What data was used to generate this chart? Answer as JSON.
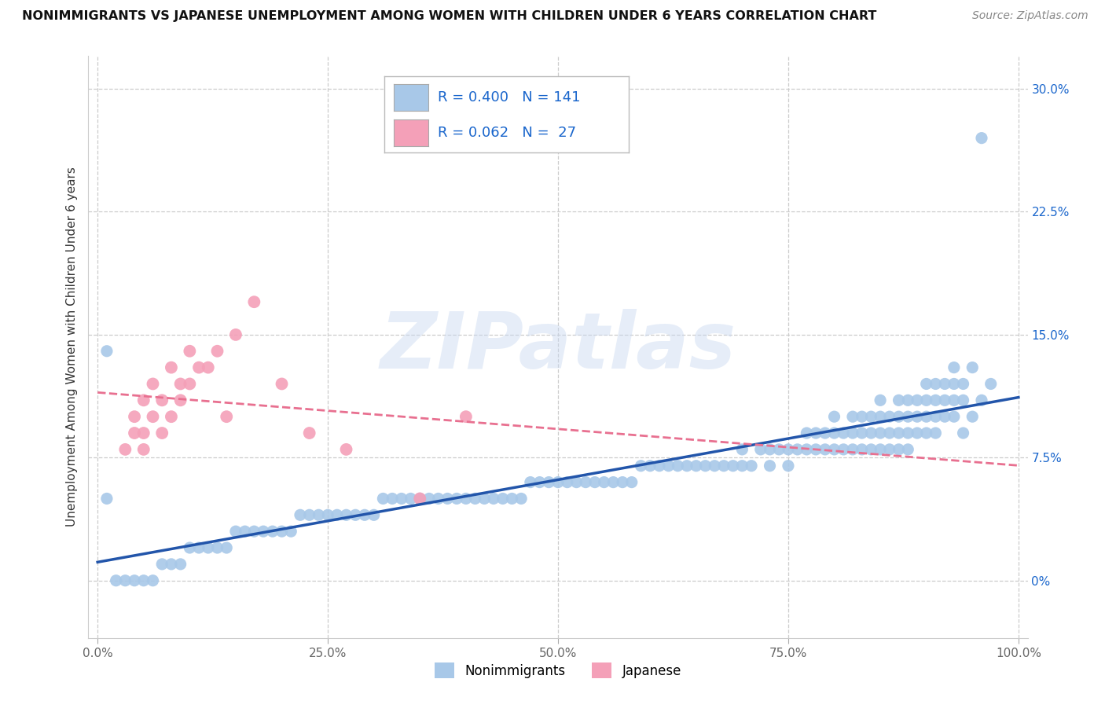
{
  "title": "NONIMMIGRANTS VS JAPANESE UNEMPLOYMENT AMONG WOMEN WITH CHILDREN UNDER 6 YEARS CORRELATION CHART",
  "source": "Source: ZipAtlas.com",
  "ylabel": "Unemployment Among Women with Children Under 6 years",
  "xlim": [
    -1,
    101
  ],
  "ylim": [
    -3.5,
    32
  ],
  "ytick_vals": [
    0,
    7.5,
    15.0,
    22.5,
    30.0
  ],
  "ytick_labels": [
    "0%",
    "7.5%",
    "15.0%",
    "22.5%",
    "30.0%"
  ],
  "xtick_vals": [
    0,
    25,
    50,
    75,
    100
  ],
  "xtick_labels": [
    "0.0%",
    "25.0%",
    "50.0%",
    "75.0%",
    "100.0%"
  ],
  "nonimm_color": "#a8c8e8",
  "japanese_color": "#f4a0b8",
  "nonimm_line_color": "#2255aa",
  "japanese_line_color": "#e87090",
  "legend_color": "#1a66cc",
  "nonimm_R": 0.4,
  "nonimm_N": 141,
  "japanese_R": 0.062,
  "japanese_N": 27,
  "background_color": "#ffffff",
  "grid_color": "#cccccc",
  "nonimm_x": [
    97,
    96,
    95,
    95,
    94,
    94,
    94,
    93,
    93,
    93,
    93,
    92,
    92,
    92,
    91,
    91,
    91,
    91,
    90,
    90,
    90,
    90,
    89,
    89,
    89,
    88,
    88,
    88,
    88,
    87,
    87,
    87,
    87,
    86,
    86,
    86,
    85,
    85,
    85,
    85,
    84,
    84,
    84,
    83,
    83,
    83,
    82,
    82,
    82,
    81,
    81,
    80,
    80,
    80,
    79,
    79,
    78,
    78,
    77,
    77,
    76,
    75,
    75,
    74,
    73,
    73,
    72,
    71,
    70,
    70,
    69,
    68,
    67,
    66,
    65,
    64,
    63,
    62,
    61,
    60,
    59,
    58,
    57,
    56,
    55,
    54,
    53,
    52,
    51,
    50,
    49,
    48,
    47,
    46,
    45,
    44,
    43,
    42,
    41,
    40,
    39,
    38,
    37,
    36,
    35,
    34,
    33,
    32,
    31,
    30,
    29,
    28,
    27,
    26,
    25,
    24,
    23,
    22,
    21,
    20,
    19,
    18,
    17,
    16,
    15,
    14,
    13,
    12,
    11,
    10,
    9,
    8,
    7,
    6,
    5,
    4,
    3,
    2,
    1,
    1,
    96
  ],
  "nonimm_y": [
    12,
    11,
    10,
    13,
    9,
    11,
    12,
    10,
    11,
    12,
    13,
    10,
    11,
    12,
    9,
    10,
    11,
    12,
    9,
    10,
    11,
    12,
    9,
    10,
    11,
    8,
    9,
    10,
    11,
    8,
    9,
    10,
    11,
    8,
    9,
    10,
    8,
    9,
    10,
    11,
    8,
    9,
    10,
    8,
    9,
    10,
    8,
    9,
    10,
    8,
    9,
    8,
    9,
    10,
    8,
    9,
    8,
    9,
    8,
    9,
    8,
    7,
    8,
    8,
    7,
    8,
    8,
    7,
    7,
    8,
    7,
    7,
    7,
    7,
    7,
    7,
    7,
    7,
    7,
    7,
    7,
    6,
    6,
    6,
    6,
    6,
    6,
    6,
    6,
    6,
    6,
    6,
    6,
    5,
    5,
    5,
    5,
    5,
    5,
    5,
    5,
    5,
    5,
    5,
    5,
    5,
    5,
    5,
    5,
    4,
    4,
    4,
    4,
    4,
    4,
    4,
    4,
    4,
    3,
    3,
    3,
    3,
    3,
    3,
    3,
    2,
    2,
    2,
    2,
    2,
    1,
    1,
    1,
    0,
    0,
    0,
    0,
    0,
    5,
    14,
    27
  ],
  "japanese_x": [
    3,
    4,
    4,
    5,
    5,
    5,
    6,
    6,
    7,
    7,
    8,
    8,
    9,
    9,
    10,
    10,
    11,
    12,
    13,
    14,
    15,
    17,
    20,
    23,
    27,
    35,
    40
  ],
  "japanese_y": [
    8,
    9,
    10,
    8,
    9,
    11,
    10,
    12,
    9,
    11,
    10,
    13,
    11,
    12,
    12,
    14,
    13,
    13,
    14,
    10,
    15,
    17,
    12,
    9,
    8,
    5,
    10
  ]
}
